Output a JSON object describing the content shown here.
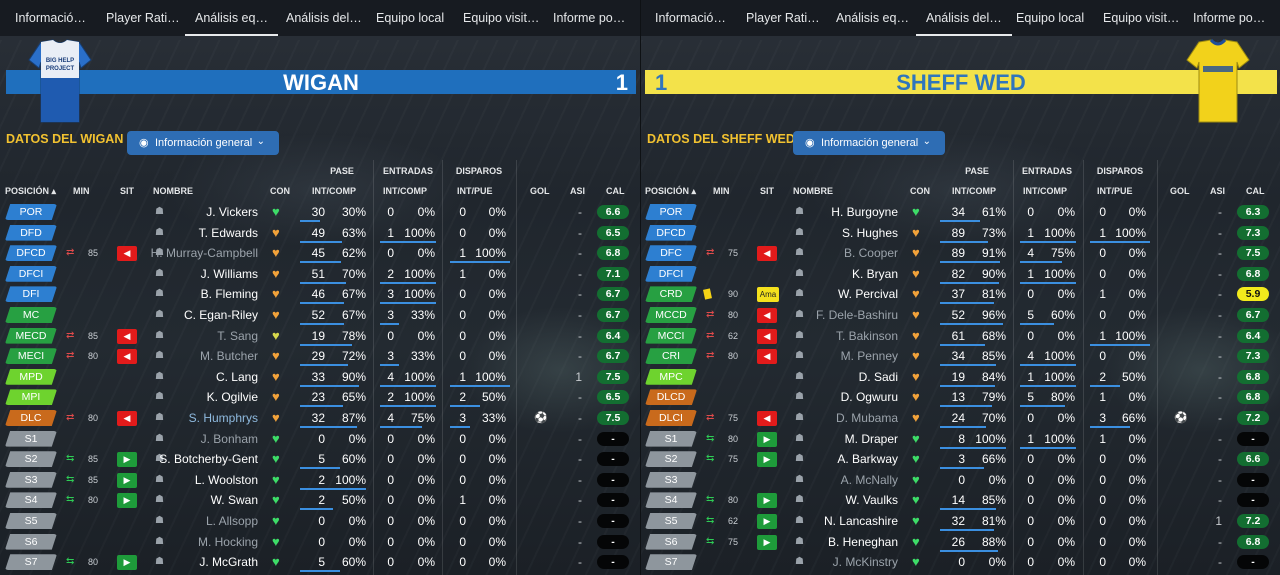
{
  "tabs": [
    "Informació…",
    "Player Rati…",
    "Análisis eq…",
    "Análisis del…",
    "Equipo local",
    "Equipo visit…",
    "Informe po…"
  ],
  "active_tab_index": {
    "left": 2,
    "right": 3
  },
  "dropdown_label": "Información general",
  "column_groups": {
    "pase": "PASE",
    "entradas": "ENTRADAS",
    "disparos": "DISPAROS"
  },
  "columns": {
    "posicion": "POSICIÓN",
    "min": "MIN",
    "sit": "SIT",
    "nombre": "NOMBRE",
    "con": "CON",
    "int_comp": "INT/COMP",
    "int_comp2": "INT/COMP",
    "int_pue": "INT/PUE",
    "gol": "GOL",
    "asi": "ASI",
    "cal": "CAL"
  },
  "colors": {
    "wigan_banner": "#1f6fbd",
    "sheff_banner": "#f3e24a",
    "title_yellow": "#f2c230"
  },
  "wigan": {
    "name": "WIGAN",
    "score": "1",
    "section_title": "DATOS DEL WIGAN",
    "shirt_text": "BIG HELP PROJECT",
    "players": [
      {
        "pos": "POR",
        "pc": "blue",
        "sub": "",
        "min": "",
        "sit": "",
        "name": "J. Vickers",
        "nstyle": "",
        "con": "green",
        "p1": "30",
        "p2": "30%",
        "t1": "0",
        "t2": "0%",
        "d1": "0",
        "d2": "0%",
        "pb": 0.3,
        "tb": 0,
        "db": 0,
        "gol": "",
        "asi": "-",
        "cal": "6.6",
        "cc": "g"
      },
      {
        "pos": "DFD",
        "pc": "blue",
        "sub": "",
        "min": "",
        "sit": "",
        "name": "T. Edwards",
        "nstyle": "",
        "con": "orange",
        "p1": "49",
        "p2": "63%",
        "t1": "1",
        "t2": "100%",
        "d1": "0",
        "d2": "0%",
        "pb": 0.63,
        "tb": 1,
        "db": 0,
        "gol": "",
        "asi": "-",
        "cal": "6.5",
        "cc": "g"
      },
      {
        "pos": "DFCD",
        "pc": "blue",
        "sub": "out",
        "min": "85",
        "sit": "red",
        "name": "H. Murray-Campbell",
        "nstyle": "dim",
        "con": "orange",
        "p1": "45",
        "p2": "62%",
        "t1": "0",
        "t2": "0%",
        "d1": "1",
        "d2": "100%",
        "pb": 0.62,
        "tb": 0,
        "db": 1,
        "gol": "",
        "asi": "-",
        "cal": "6.8",
        "cc": "g"
      },
      {
        "pos": "DFCI",
        "pc": "blue",
        "sub": "",
        "min": "",
        "sit": "",
        "name": "J. Williams",
        "nstyle": "",
        "con": "orange",
        "p1": "51",
        "p2": "70%",
        "t1": "2",
        "t2": "100%",
        "d1": "1",
        "d2": "0%",
        "pb": 0.7,
        "tb": 1,
        "db": 0,
        "gol": "",
        "asi": "-",
        "cal": "7.1",
        "cc": "g"
      },
      {
        "pos": "DFI",
        "pc": "blue",
        "sub": "",
        "min": "",
        "sit": "",
        "name": "B. Fleming",
        "nstyle": "",
        "con": "orange",
        "p1": "46",
        "p2": "67%",
        "t1": "3",
        "t2": "100%",
        "d1": "0",
        "d2": "0%",
        "pb": 0.67,
        "tb": 1,
        "db": 0,
        "gol": "",
        "asi": "-",
        "cal": "6.7",
        "cc": "g"
      },
      {
        "pos": "MC",
        "pc": "green",
        "sub": "",
        "min": "",
        "sit": "",
        "name": "C. Egan-Riley",
        "nstyle": "",
        "con": "orange",
        "p1": "52",
        "p2": "67%",
        "t1": "3",
        "t2": "33%",
        "d1": "0",
        "d2": "0%",
        "pb": 0.67,
        "tb": 0.33,
        "db": 0,
        "gol": "",
        "asi": "-",
        "cal": "6.7",
        "cc": "g"
      },
      {
        "pos": "MECD",
        "pc": "green",
        "sub": "out",
        "min": "85",
        "sit": "red",
        "name": "T. Sang",
        "nstyle": "dim",
        "con": "yellow",
        "p1": "19",
        "p2": "78%",
        "t1": "0",
        "t2": "0%",
        "d1": "0",
        "d2": "0%",
        "pb": 0.78,
        "tb": 0,
        "db": 0,
        "gol": "",
        "asi": "-",
        "cal": "6.4",
        "cc": "g"
      },
      {
        "pos": "MECI",
        "pc": "green",
        "sub": "out",
        "min": "80",
        "sit": "red",
        "name": "M. Butcher",
        "nstyle": "dim",
        "con": "orange",
        "p1": "29",
        "p2": "72%",
        "t1": "3",
        "t2": "33%",
        "d1": "0",
        "d2": "0%",
        "pb": 0.72,
        "tb": 0.33,
        "db": 0,
        "gol": "",
        "asi": "-",
        "cal": "6.7",
        "cc": "g"
      },
      {
        "pos": "MPD",
        "pc": "lime",
        "sub": "",
        "min": "",
        "sit": "",
        "name": "C. Lang",
        "nstyle": "",
        "con": "orange",
        "p1": "33",
        "p2": "90%",
        "t1": "4",
        "t2": "100%",
        "d1": "1",
        "d2": "100%",
        "pb": 0.9,
        "tb": 1,
        "db": 1,
        "gol": "",
        "asi": "1",
        "cal": "7.5",
        "cc": "g"
      },
      {
        "pos": "MPI",
        "pc": "lime",
        "sub": "",
        "min": "",
        "sit": "",
        "name": "K. Ogilvie",
        "nstyle": "",
        "con": "orange",
        "p1": "23",
        "p2": "65%",
        "t1": "2",
        "t2": "100%",
        "d1": "2",
        "d2": "50%",
        "pb": 0.65,
        "tb": 1,
        "db": 0.5,
        "gol": "",
        "asi": "-",
        "cal": "6.5",
        "cc": "g"
      },
      {
        "pos": "DLC",
        "pc": "orange",
        "sub": "out",
        "min": "80",
        "sit": "red",
        "name": "S. Humphrys",
        "nstyle": "subbed",
        "con": "orange",
        "p1": "32",
        "p2": "87%",
        "t1": "4",
        "t2": "75%",
        "d1": "3",
        "d2": "33%",
        "pb": 0.87,
        "tb": 0.75,
        "db": 0.33,
        "gol": "⚽",
        "asi": "-",
        "cal": "7.5",
        "cc": "g"
      },
      {
        "pos": "S1",
        "pc": "grey",
        "sub": "",
        "min": "",
        "sit": "",
        "name": "J. Bonham",
        "nstyle": "dim",
        "con": "green",
        "p1": "0",
        "p2": "0%",
        "t1": "0",
        "t2": "0%",
        "d1": "0",
        "d2": "0%",
        "pb": 0,
        "tb": 0,
        "db": 0,
        "gol": "",
        "asi": "-",
        "cal": "-",
        "cc": "b"
      },
      {
        "pos": "S2",
        "pc": "grey",
        "sub": "in",
        "min": "85",
        "sit": "green",
        "name": "S. Botcherby-Gent",
        "nstyle": "",
        "con": "green",
        "p1": "5",
        "p2": "60%",
        "t1": "0",
        "t2": "0%",
        "d1": "0",
        "d2": "0%",
        "pb": 0.6,
        "tb": 0,
        "db": 0,
        "gol": "",
        "asi": "-",
        "cal": "-",
        "cc": "b"
      },
      {
        "pos": "S3",
        "pc": "grey",
        "sub": "in",
        "min": "85",
        "sit": "green",
        "name": "L. Woolston",
        "nstyle": "",
        "con": "green",
        "p1": "2",
        "p2": "100%",
        "t1": "0",
        "t2": "0%",
        "d1": "0",
        "d2": "0%",
        "pb": 1,
        "tb": 0,
        "db": 0,
        "gol": "",
        "asi": "-",
        "cal": "-",
        "cc": "b"
      },
      {
        "pos": "S4",
        "pc": "grey",
        "sub": "in",
        "min": "80",
        "sit": "green",
        "name": "W. Swan",
        "nstyle": "",
        "con": "green",
        "p1": "2",
        "p2": "50%",
        "t1": "0",
        "t2": "0%",
        "d1": "1",
        "d2": "0%",
        "pb": 0.5,
        "tb": 0,
        "db": 0,
        "gol": "",
        "asi": "-",
        "cal": "-",
        "cc": "b"
      },
      {
        "pos": "S5",
        "pc": "grey",
        "sub": "",
        "min": "",
        "sit": "",
        "name": "L. Allsopp",
        "nstyle": "dim",
        "con": "green",
        "p1": "0",
        "p2": "0%",
        "t1": "0",
        "t2": "0%",
        "d1": "0",
        "d2": "0%",
        "pb": 0,
        "tb": 0,
        "db": 0,
        "gol": "",
        "asi": "-",
        "cal": "-",
        "cc": "b"
      },
      {
        "pos": "S6",
        "pc": "grey",
        "sub": "",
        "min": "",
        "sit": "",
        "name": "M. Hocking",
        "nstyle": "dim",
        "con": "green",
        "p1": "0",
        "p2": "0%",
        "t1": "0",
        "t2": "0%",
        "d1": "0",
        "d2": "0%",
        "pb": 0,
        "tb": 0,
        "db": 0,
        "gol": "",
        "asi": "-",
        "cal": "-",
        "cc": "b"
      },
      {
        "pos": "S7",
        "pc": "grey",
        "sub": "in",
        "min": "80",
        "sit": "green",
        "name": "J. McGrath",
        "nstyle": "",
        "con": "green",
        "p1": "5",
        "p2": "60%",
        "t1": "0",
        "t2": "0%",
        "d1": "0",
        "d2": "0%",
        "pb": 0.6,
        "tb": 0,
        "db": 0,
        "gol": "",
        "asi": "-",
        "cal": "-",
        "cc": "b"
      }
    ]
  },
  "sheff": {
    "name": "SHEFF WED",
    "score": "1",
    "section_title": "DATOS DEL SHEFF WED",
    "players": [
      {
        "pos": "POR",
        "pc": "blue",
        "sub": "",
        "min": "",
        "sit": "",
        "name": "H. Burgoyne",
        "nstyle": "",
        "con": "green",
        "p1": "34",
        "p2": "61%",
        "t1": "0",
        "t2": "0%",
        "d1": "0",
        "d2": "0%",
        "pb": 0.61,
        "tb": 0,
        "db": 0,
        "gol": "",
        "asi": "-",
        "cal": "6.3",
        "cc": "g"
      },
      {
        "pos": "DFCD",
        "pc": "blue",
        "sub": "",
        "min": "",
        "sit": "",
        "name": "S. Hughes",
        "nstyle": "",
        "con": "orange",
        "p1": "89",
        "p2": "73%",
        "t1": "1",
        "t2": "100%",
        "d1": "1",
        "d2": "100%",
        "pb": 0.73,
        "tb": 1,
        "db": 1,
        "gol": "",
        "asi": "-",
        "cal": "7.3",
        "cc": "g"
      },
      {
        "pos": "DFC",
        "pc": "blue",
        "sub": "out",
        "min": "75",
        "sit": "red",
        "name": "B. Cooper",
        "nstyle": "dim",
        "con": "orange",
        "p1": "89",
        "p2": "91%",
        "t1": "4",
        "t2": "75%",
        "d1": "0",
        "d2": "0%",
        "pb": 0.91,
        "tb": 0.75,
        "db": 0,
        "gol": "",
        "asi": "-",
        "cal": "7.5",
        "cc": "g"
      },
      {
        "pos": "DFCI",
        "pc": "blue",
        "sub": "",
        "min": "",
        "sit": "",
        "name": "K. Bryan",
        "nstyle": "",
        "con": "orange",
        "p1": "82",
        "p2": "90%",
        "t1": "1",
        "t2": "100%",
        "d1": "0",
        "d2": "0%",
        "pb": 0.9,
        "tb": 1,
        "db": 0,
        "gol": "",
        "asi": "-",
        "cal": "6.8",
        "cc": "g"
      },
      {
        "pos": "CRD",
        "pc": "green",
        "sub": "card",
        "min": "90",
        "sit": "yellow",
        "name": "W. Percival",
        "nstyle": "",
        "con": "orange",
        "p1": "37",
        "p2": "81%",
        "t1": "0",
        "t2": "0%",
        "d1": "1",
        "d2": "0%",
        "pb": 0.81,
        "tb": 0,
        "db": 0,
        "gol": "",
        "asi": "-",
        "cal": "5.9",
        "cc": "y"
      },
      {
        "pos": "MCCD",
        "pc": "green",
        "sub": "out",
        "min": "80",
        "sit": "red",
        "name": "F. Dele-Bashiru",
        "nstyle": "dim",
        "con": "orange",
        "p1": "52",
        "p2": "96%",
        "t1": "5",
        "t2": "60%",
        "d1": "0",
        "d2": "0%",
        "pb": 0.96,
        "tb": 0.6,
        "db": 0,
        "gol": "",
        "asi": "-",
        "cal": "6.7",
        "cc": "g"
      },
      {
        "pos": "MCCI",
        "pc": "green",
        "sub": "out",
        "min": "62",
        "sit": "red",
        "name": "T. Bakinson",
        "nstyle": "dim",
        "con": "orange",
        "p1": "61",
        "p2": "68%",
        "t1": "0",
        "t2": "0%",
        "d1": "1",
        "d2": "100%",
        "pb": 0.68,
        "tb": 0,
        "db": 1,
        "gol": "",
        "asi": "-",
        "cal": "6.4",
        "cc": "g"
      },
      {
        "pos": "CRI",
        "pc": "green",
        "sub": "out",
        "min": "80",
        "sit": "red",
        "name": "M. Penney",
        "nstyle": "dim",
        "con": "orange",
        "p1": "34",
        "p2": "85%",
        "t1": "4",
        "t2": "100%",
        "d1": "0",
        "d2": "0%",
        "pb": 0.85,
        "tb": 1,
        "db": 0,
        "gol": "",
        "asi": "-",
        "cal": "7.3",
        "cc": "g"
      },
      {
        "pos": "MPC",
        "pc": "lime",
        "sub": "",
        "min": "",
        "sit": "",
        "name": "D. Sadi",
        "nstyle": "",
        "con": "orange",
        "p1": "19",
        "p2": "84%",
        "t1": "1",
        "t2": "100%",
        "d1": "2",
        "d2": "50%",
        "pb": 0.84,
        "tb": 1,
        "db": 0.5,
        "gol": "",
        "asi": "-",
        "cal": "6.8",
        "cc": "g"
      },
      {
        "pos": "DLCD",
        "pc": "orange",
        "sub": "",
        "min": "",
        "sit": "",
        "name": "D. Ogwuru",
        "nstyle": "",
        "con": "orange",
        "p1": "13",
        "p2": "79%",
        "t1": "5",
        "t2": "80%",
        "d1": "1",
        "d2": "0%",
        "pb": 0.79,
        "tb": 0.8,
        "db": 0,
        "gol": "",
        "asi": "-",
        "cal": "6.8",
        "cc": "g"
      },
      {
        "pos": "DLCI",
        "pc": "orange",
        "sub": "out",
        "min": "75",
        "sit": "red",
        "name": "D. Mubama",
        "nstyle": "dim",
        "con": "orange",
        "p1": "24",
        "p2": "70%",
        "t1": "0",
        "t2": "0%",
        "d1": "3",
        "d2": "66%",
        "pb": 0.7,
        "tb": 0,
        "db": 0.66,
        "gol": "⚽",
        "asi": "-",
        "cal": "7.2",
        "cc": "g"
      },
      {
        "pos": "S1",
        "pc": "grey",
        "sub": "in",
        "min": "80",
        "sit": "green",
        "name": "M. Draper",
        "nstyle": "",
        "con": "green",
        "p1": "8",
        "p2": "100%",
        "t1": "1",
        "t2": "100%",
        "d1": "1",
        "d2": "0%",
        "pb": 1,
        "tb": 1,
        "db": 0,
        "gol": "",
        "asi": "-",
        "cal": "-",
        "cc": "b"
      },
      {
        "pos": "S2",
        "pc": "grey",
        "sub": "in",
        "min": "75",
        "sit": "green",
        "name": "A. Barkway",
        "nstyle": "",
        "con": "green",
        "p1": "3",
        "p2": "66%",
        "t1": "0",
        "t2": "0%",
        "d1": "0",
        "d2": "0%",
        "pb": 0.66,
        "tb": 0,
        "db": 0,
        "gol": "",
        "asi": "-",
        "cal": "6.6",
        "cc": "g"
      },
      {
        "pos": "S3",
        "pc": "grey",
        "sub": "",
        "min": "",
        "sit": "",
        "name": "A. McNally",
        "nstyle": "dim",
        "con": "green",
        "p1": "0",
        "p2": "0%",
        "t1": "0",
        "t2": "0%",
        "d1": "0",
        "d2": "0%",
        "pb": 0,
        "tb": 0,
        "db": 0,
        "gol": "",
        "asi": "-",
        "cal": "-",
        "cc": "b"
      },
      {
        "pos": "S4",
        "pc": "grey",
        "sub": "in",
        "min": "80",
        "sit": "green",
        "name": "W. Vaulks",
        "nstyle": "",
        "con": "green",
        "p1": "14",
        "p2": "85%",
        "t1": "0",
        "t2": "0%",
        "d1": "0",
        "d2": "0%",
        "pb": 0.85,
        "tb": 0,
        "db": 0,
        "gol": "",
        "asi": "-",
        "cal": "-",
        "cc": "b"
      },
      {
        "pos": "S5",
        "pc": "grey",
        "sub": "in",
        "min": "62",
        "sit": "green",
        "name": "N. Lancashire",
        "nstyle": "",
        "con": "green",
        "p1": "32",
        "p2": "81%",
        "t1": "0",
        "t2": "0%",
        "d1": "0",
        "d2": "0%",
        "pb": 0.81,
        "tb": 0,
        "db": 0,
        "gol": "",
        "asi": "1",
        "cal": "7.2",
        "cc": "g"
      },
      {
        "pos": "S6",
        "pc": "grey",
        "sub": "in",
        "min": "75",
        "sit": "green",
        "name": "B. Heneghan",
        "nstyle": "",
        "con": "green",
        "p1": "26",
        "p2": "88%",
        "t1": "0",
        "t2": "0%",
        "d1": "0",
        "d2": "0%",
        "pb": 0.88,
        "tb": 0,
        "db": 0,
        "gol": "",
        "asi": "-",
        "cal": "6.8",
        "cc": "g"
      },
      {
        "pos": "S7",
        "pc": "grey",
        "sub": "",
        "min": "",
        "sit": "",
        "name": "J. McKinstry",
        "nstyle": "dim",
        "con": "green",
        "p1": "0",
        "p2": "0%",
        "t1": "0",
        "t2": "0%",
        "d1": "0",
        "d2": "0%",
        "pb": 0,
        "tb": 0,
        "db": 0,
        "gol": "",
        "asi": "-",
        "cal": "-",
        "cc": "b"
      }
    ]
  }
}
